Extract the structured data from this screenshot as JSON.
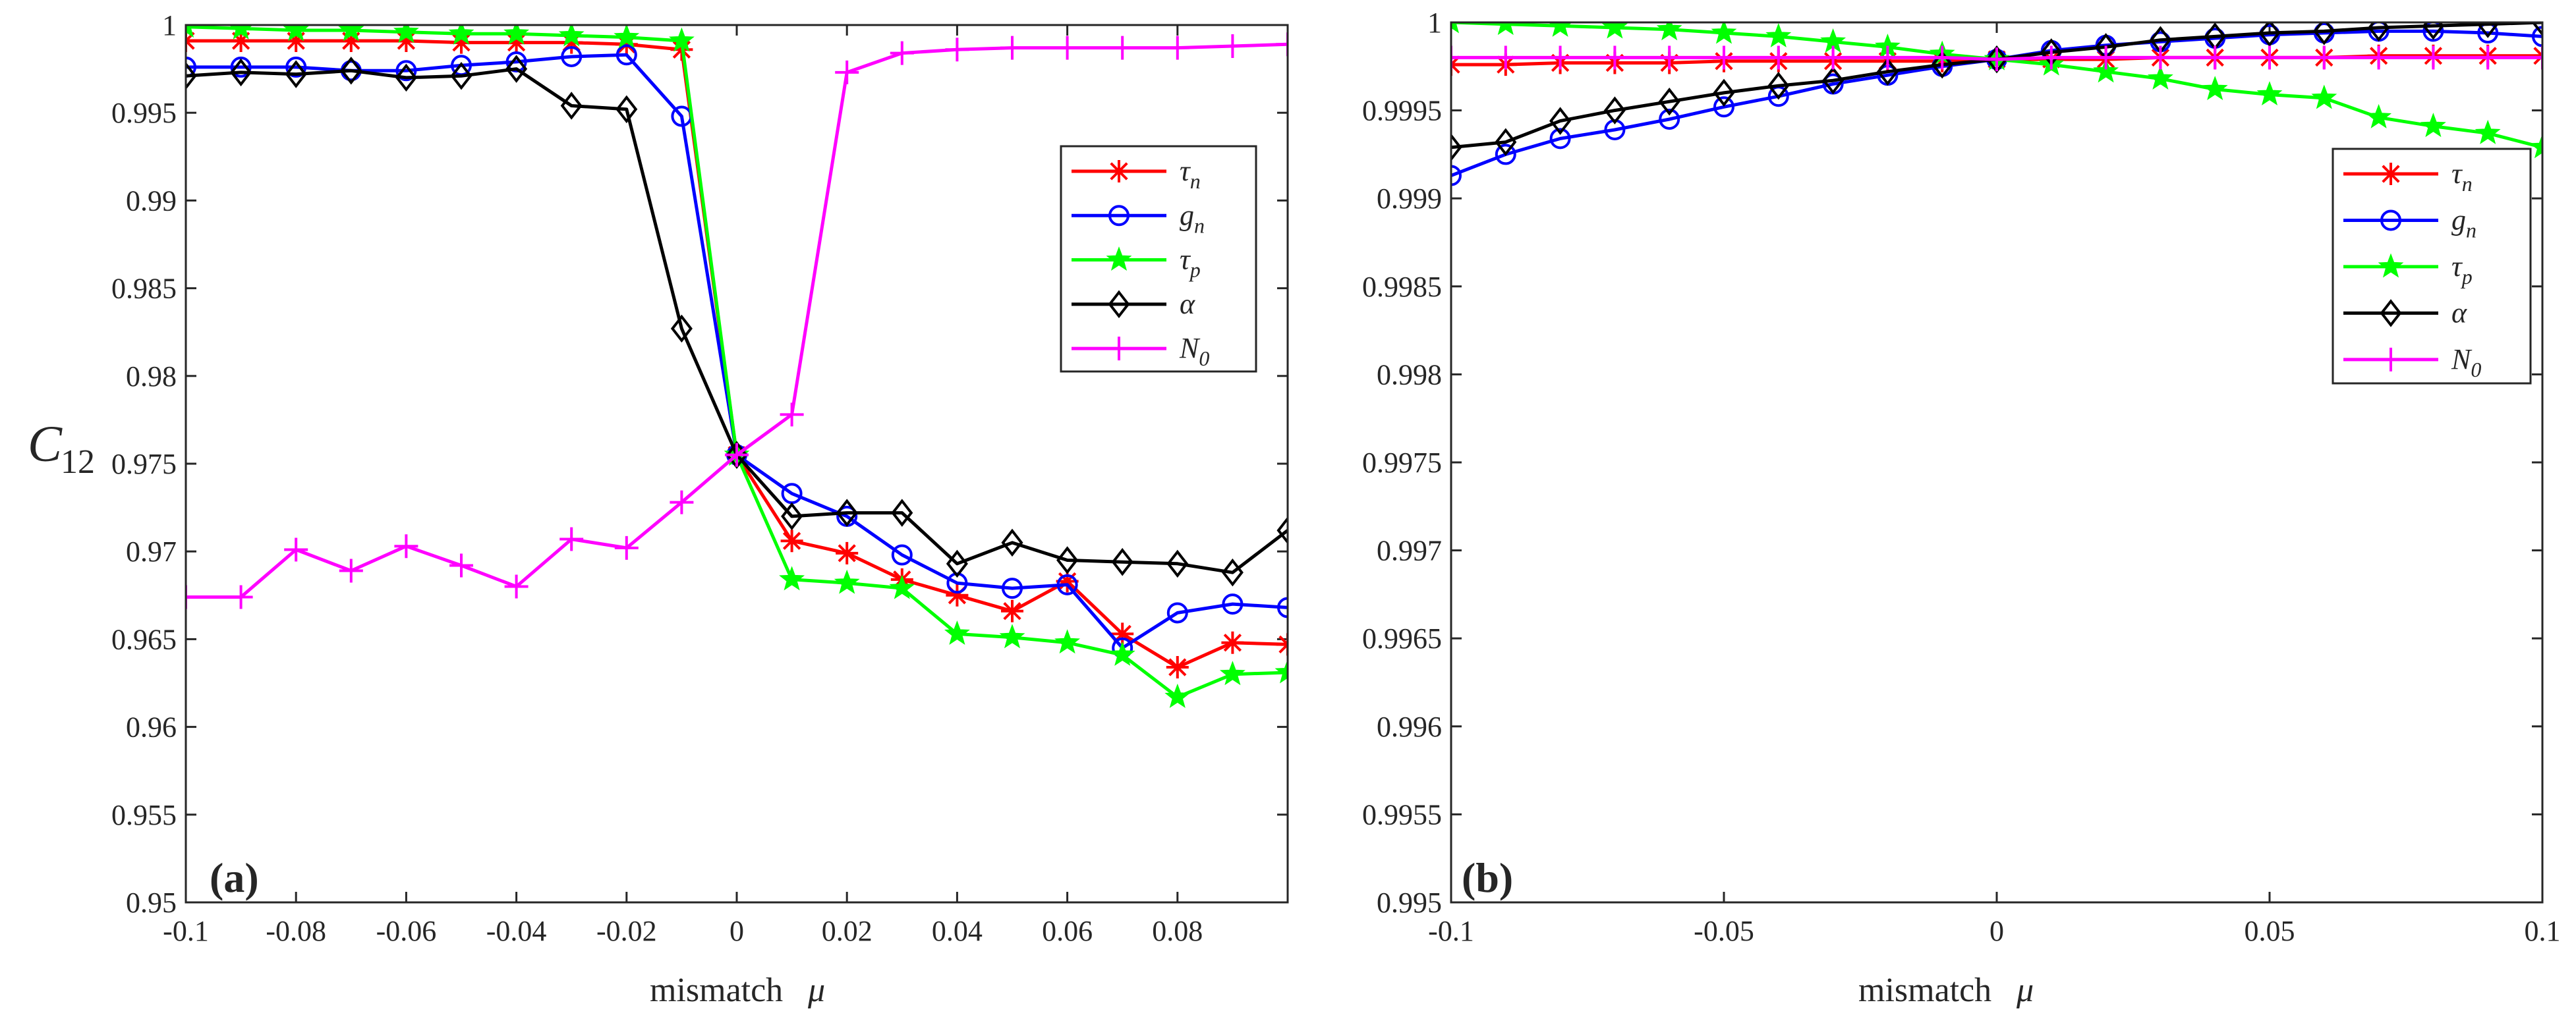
{
  "figure": {
    "ylabel_main": "C",
    "ylabel_sub": "12",
    "legend": [
      {
        "key": "tau_n",
        "base": "τ",
        "sub": "n",
        "color": "#ff0000",
        "marker": "asterisk"
      },
      {
        "key": "g_n",
        "base": "g",
        "sub": "n",
        "color": "#0000ff",
        "marker": "circle"
      },
      {
        "key": "tau_p",
        "base": "τ",
        "sub": "p",
        "color": "#00ff00",
        "marker": "star"
      },
      {
        "key": "alpha",
        "base": "α",
        "sub": "",
        "color": "#000000",
        "marker": "diamond"
      },
      {
        "key": "N_0",
        "base": "N",
        "sub": "0",
        "color": "#ff00ff",
        "marker": "plus"
      }
    ]
  },
  "chart_data": [
    {
      "type": "line",
      "panel": "(a)",
      "xlabel": "mismatch",
      "xlabel_symbol": "μ",
      "ylabel": "C12",
      "xlim": [
        -0.1,
        0.1
      ],
      "ylim": [
        0.95,
        1.0
      ],
      "xticks": [
        -0.1,
        -0.08,
        -0.06,
        -0.04,
        -0.02,
        0,
        0.02,
        0.04,
        0.06,
        0.08
      ],
      "xtick_labels": [
        "-0.1",
        "-0.08",
        "-0.06",
        "-0.04",
        "-0.02",
        "0",
        "0.02",
        "0.04",
        "0.06",
        "0.08"
      ],
      "yticks": [
        0.95,
        0.955,
        0.96,
        0.965,
        0.97,
        0.975,
        0.98,
        0.985,
        0.99,
        0.995,
        1.0
      ],
      "ytick_labels": [
        "0.95",
        "0.955",
        "0.96",
        "0.965",
        "0.97",
        "0.975",
        "0.98",
        "0.985",
        "0.99",
        "0.995",
        "1"
      ],
      "legend_position": "top-right",
      "series": [
        {
          "key": "tau_n",
          "x": [
            -0.1,
            -0.09,
            -0.08,
            -0.07,
            -0.06,
            -0.05,
            -0.04,
            -0.03,
            -0.02,
            -0.01,
            0,
            0.01,
            0.02,
            0.03,
            0.04,
            0.05,
            0.06,
            0.07,
            0.08,
            0.09,
            0.1
          ],
          "values": [
            0.9991,
            0.9991,
            0.9991,
            0.9991,
            0.9991,
            0.999,
            0.999,
            0.999,
            0.9989,
            0.9986,
            0.9755,
            0.9706,
            0.9699,
            0.9684,
            0.9675,
            0.9666,
            0.9683,
            0.9653,
            0.9634,
            0.9648,
            0.9647
          ]
        },
        {
          "key": "g_n",
          "x": [
            -0.1,
            -0.09,
            -0.08,
            -0.07,
            -0.06,
            -0.05,
            -0.04,
            -0.03,
            -0.02,
            -0.01,
            0,
            0.01,
            0.02,
            0.03,
            0.04,
            0.05,
            0.06,
            0.07,
            0.08,
            0.09,
            0.1
          ],
          "values": [
            0.9976,
            0.9976,
            0.9976,
            0.9974,
            0.9974,
            0.9977,
            0.9979,
            0.9982,
            0.9983,
            0.9948,
            0.9755,
            0.9733,
            0.972,
            0.9698,
            0.9682,
            0.9679,
            0.9681,
            0.9645,
            0.9665,
            0.967,
            0.9668
          ]
        },
        {
          "key": "tau_p",
          "x": [
            -0.1,
            -0.09,
            -0.08,
            -0.07,
            -0.06,
            -0.05,
            -0.04,
            -0.03,
            -0.02,
            -0.01,
            0,
            0.01,
            0.02,
            0.03,
            0.04,
            0.05,
            0.06,
            0.07,
            0.08,
            0.09,
            0.1
          ],
          "values": [
            0.9999,
            0.9998,
            0.9997,
            0.9997,
            0.9996,
            0.9995,
            0.9995,
            0.9994,
            0.9993,
            0.9991,
            0.9755,
            0.9684,
            0.9682,
            0.9679,
            0.9653,
            0.9651,
            0.9648,
            0.9641,
            0.9617,
            0.963,
            0.9631
          ]
        },
        {
          "key": "alpha",
          "x": [
            -0.1,
            -0.09,
            -0.08,
            -0.07,
            -0.06,
            -0.05,
            -0.04,
            -0.03,
            -0.02,
            -0.01,
            0,
            0.01,
            0.02,
            0.03,
            0.04,
            0.05,
            0.06,
            0.07,
            0.08,
            0.09,
            0.1
          ],
          "values": [
            0.9971,
            0.9973,
            0.9972,
            0.9974,
            0.997,
            0.9971,
            0.9975,
            0.9954,
            0.9952,
            0.9827,
            0.9755,
            0.972,
            0.9722,
            0.9722,
            0.9693,
            0.9705,
            0.9695,
            0.9694,
            0.9693,
            0.9688,
            0.9712
          ]
        },
        {
          "key": "N_0",
          "x": [
            -0.1,
            -0.09,
            -0.08,
            -0.07,
            -0.06,
            -0.05,
            -0.04,
            -0.03,
            -0.02,
            -0.01,
            0,
            0.01,
            0.02,
            0.03,
            0.04,
            0.05,
            0.06,
            0.07,
            0.08,
            0.09,
            0.1
          ],
          "values": [
            0.9674,
            0.9674,
            0.9701,
            0.9689,
            0.9703,
            0.9692,
            0.968,
            0.9707,
            0.9702,
            0.9728,
            0.9755,
            0.9778,
            0.9973,
            0.9984,
            0.9986,
            0.9987,
            0.9987,
            0.9987,
            0.9987,
            0.9988,
            0.9989
          ]
        }
      ]
    },
    {
      "type": "line",
      "panel": "(b)",
      "xlabel": "mismatch",
      "xlabel_symbol": "μ",
      "xlim": [
        -0.1,
        0.1
      ],
      "ylim": [
        0.995,
        1.0
      ],
      "xticks": [
        -0.1,
        -0.05,
        0,
        0.05,
        0.1
      ],
      "xtick_labels": [
        "-0.1",
        "-0.05",
        "0",
        "0.05",
        "0.1"
      ],
      "yticks": [
        0.995,
        0.9955,
        0.996,
        0.9965,
        0.997,
        0.9975,
        0.998,
        0.9985,
        0.999,
        0.9995,
        1.0
      ],
      "ytick_labels": [
        "0.995",
        "0.9955",
        "0.996",
        "0.9965",
        "0.997",
        "0.9975",
        "0.998",
        "0.9985",
        "0.999",
        "0.9995",
        "1"
      ],
      "legend_position": "top-right",
      "series": [
        {
          "key": "tau_n",
          "x": [
            -0.1,
            -0.09,
            -0.08,
            -0.07,
            -0.06,
            -0.05,
            -0.04,
            -0.03,
            -0.02,
            -0.01,
            0,
            0.01,
            0.02,
            0.03,
            0.04,
            0.05,
            0.06,
            0.07,
            0.08,
            0.09,
            0.1
          ],
          "values": [
            0.99976,
            0.99976,
            0.99977,
            0.99977,
            0.99977,
            0.99978,
            0.99978,
            0.99978,
            0.99978,
            0.99978,
            0.99979,
            0.99979,
            0.99979,
            0.9998,
            0.9998,
            0.9998,
            0.9998,
            0.99981,
            0.99981,
            0.99981,
            0.99981
          ]
        },
        {
          "key": "g_n",
          "x": [
            -0.1,
            -0.09,
            -0.08,
            -0.07,
            -0.06,
            -0.05,
            -0.04,
            -0.03,
            -0.02,
            -0.01,
            0,
            0.01,
            0.02,
            0.03,
            0.04,
            0.05,
            0.06,
            0.07,
            0.08,
            0.09,
            0.1
          ],
          "values": [
            0.99913,
            0.99925,
            0.99934,
            0.99939,
            0.99945,
            0.99952,
            0.99958,
            0.99965,
            0.9997,
            0.99975,
            0.99979,
            0.99984,
            0.99987,
            0.99989,
            0.99991,
            0.99993,
            0.99994,
            0.99995,
            0.99995,
            0.99994,
            0.99992
          ]
        },
        {
          "key": "tau_p",
          "x": [
            -0.1,
            -0.09,
            -0.08,
            -0.07,
            -0.06,
            -0.05,
            -0.04,
            -0.03,
            -0.02,
            -0.01,
            0,
            0.01,
            0.02,
            0.03,
            0.04,
            0.05,
            0.06,
            0.07,
            0.08,
            0.09,
            0.1
          ],
          "values": [
            1.0,
            0.99999,
            0.99998,
            0.99997,
            0.99996,
            0.99994,
            0.99992,
            0.99989,
            0.99986,
            0.99982,
            0.99979,
            0.99976,
            0.99972,
            0.99968,
            0.99962,
            0.99959,
            0.99957,
            0.99946,
            0.99941,
            0.99937,
            0.99929
          ]
        },
        {
          "key": "alpha",
          "x": [
            -0.1,
            -0.09,
            -0.08,
            -0.07,
            -0.06,
            -0.05,
            -0.04,
            -0.03,
            -0.02,
            -0.01,
            0,
            0.01,
            0.02,
            0.03,
            0.04,
            0.05,
            0.06,
            0.07,
            0.08,
            0.09,
            0.1
          ],
          "values": [
            0.99929,
            0.99932,
            0.99944,
            0.9995,
            0.99955,
            0.9996,
            0.99964,
            0.99967,
            0.99972,
            0.99976,
            0.99979,
            0.99983,
            0.99986,
            0.9999,
            0.99992,
            0.99994,
            0.99995,
            0.99997,
            0.99998,
            0.99999,
            1.0
          ]
        },
        {
          "key": "N_0",
          "x": [
            -0.1,
            -0.09,
            -0.08,
            -0.07,
            -0.06,
            -0.05,
            -0.04,
            -0.03,
            -0.02,
            -0.01,
            0,
            0.01,
            0.02,
            0.03,
            0.04,
            0.05,
            0.06,
            0.07,
            0.08,
            0.09,
            0.1
          ],
          "values": [
            0.9998,
            0.9998,
            0.9998,
            0.9998,
            0.9998,
            0.9998,
            0.9998,
            0.9998,
            0.9998,
            0.9998,
            0.99979,
            0.9998,
            0.9998,
            0.9998,
            0.9998,
            0.9998,
            0.9998,
            0.9998,
            0.9998,
            0.9998,
            0.9998
          ]
        }
      ]
    }
  ]
}
